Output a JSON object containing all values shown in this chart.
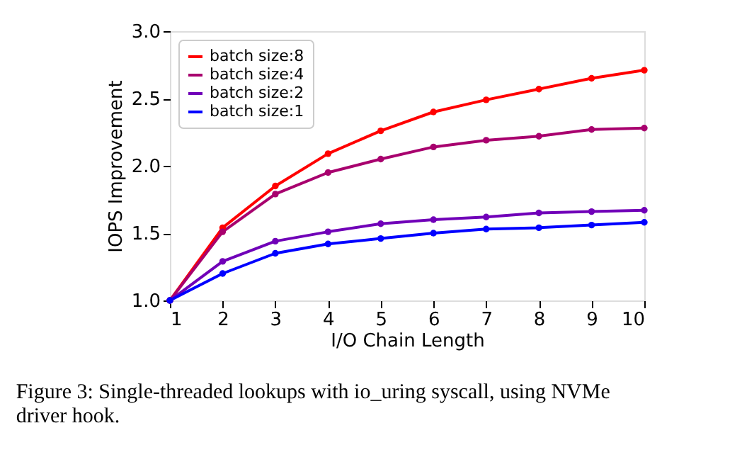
{
  "chart_data": {
    "type": "line",
    "xlabel": "I/O Chain Length",
    "ylabel": "IOPS Improvement",
    "x": [
      1,
      2,
      3,
      4,
      5,
      6,
      7,
      8,
      9,
      10
    ],
    "series": [
      {
        "name": "batch size:8",
        "color": "#ff0000",
        "values": [
          1.0,
          1.54,
          1.85,
          2.09,
          2.26,
          2.4,
          2.49,
          2.57,
          2.65,
          2.71
        ]
      },
      {
        "name": "batch size:4",
        "color": "#a8006e",
        "values": [
          1.0,
          1.51,
          1.79,
          1.95,
          2.05,
          2.14,
          2.19,
          2.22,
          2.27,
          2.28
        ]
      },
      {
        "name": "batch size:2",
        "color": "#7000b8",
        "values": [
          1.0,
          1.29,
          1.44,
          1.51,
          1.57,
          1.6,
          1.62,
          1.65,
          1.66,
          1.67
        ]
      },
      {
        "name": "batch size:1",
        "color": "#0000ff",
        "values": [
          1.0,
          1.2,
          1.35,
          1.42,
          1.46,
          1.5,
          1.53,
          1.54,
          1.56,
          1.58
        ]
      }
    ],
    "xlim": [
      1,
      10
    ],
    "xticks": [
      1,
      2,
      3,
      4,
      5,
      6,
      7,
      8,
      9,
      10
    ],
    "ylim": [
      1.0,
      3.0
    ],
    "yticks": [
      {
        "value": 1.0,
        "label": "1.0"
      },
      {
        "value": 1.5,
        "label": "1.5"
      },
      {
        "value": 2.0,
        "label": "2.0"
      },
      {
        "value": 2.5,
        "label": "2.5"
      },
      {
        "value": 3.0,
        "label": "3.0"
      }
    ],
    "grid": false,
    "legend": "top left",
    "marker": "circle",
    "line_style": "solid",
    "annotations": [
      "Figure 3: Single-threaded lookups with io_uring syscall, using NVMe driver hook."
    ]
  }
}
